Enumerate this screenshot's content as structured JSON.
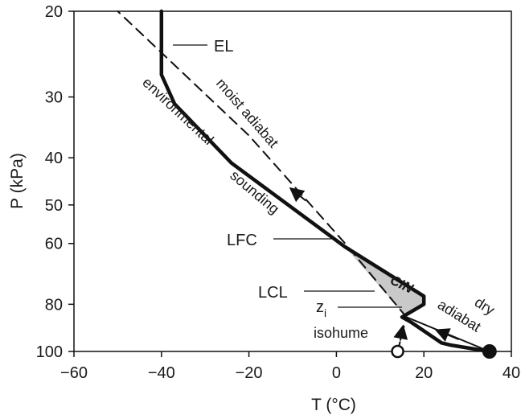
{
  "chart_data": {
    "type": "line",
    "title": "",
    "xlabel": "T (°C)",
    "ylabel": "P (kPa)",
    "xlim": [
      -60,
      40
    ],
    "ylim": [
      100,
      20
    ],
    "y_scale": "log",
    "x_ticks": [
      -60,
      -40,
      -20,
      0,
      20,
      40
    ],
    "x_tick_labels": [
      "−60",
      "−40",
      "−20",
      "0",
      "20",
      "40"
    ],
    "y_ticks": [
      20,
      30,
      40,
      50,
      60,
      80,
      100
    ],
    "y_tick_labels": [
      "20",
      "30",
      "40",
      "50",
      "60",
      "80",
      "100"
    ],
    "grid": false,
    "legend": "none",
    "series": [
      {
        "name": "environmental sounding",
        "style": "thick solid",
        "color": "#111111",
        "x": [
          35,
          26,
          24,
          17,
          15,
          20,
          20,
          2,
          -24,
          -37,
          -40,
          -40
        ],
        "y": [
          100,
          97,
          96,
          87,
          85,
          80,
          77,
          61,
          41,
          31,
          27,
          20
        ]
      },
      {
        "name": "dry adiabat",
        "style": "thin solid",
        "color": "#111111",
        "x": [
          35,
          16
        ],
        "y": [
          100,
          85
        ]
      },
      {
        "name": "moist adiabat",
        "style": "dashed",
        "color": "#111111",
        "x": [
          16,
          2,
          -20,
          -50
        ],
        "y": [
          85,
          60,
          36,
          20
        ]
      },
      {
        "name": "isohume",
        "style": "dashed",
        "color": "#111111",
        "x": [
          14,
          16
        ],
        "y": [
          100,
          85
        ]
      }
    ],
    "points": [
      {
        "x": 35,
        "y": 100,
        "style": "filled"
      },
      {
        "x": 14,
        "y": 100,
        "style": "open"
      }
    ],
    "cin_region": {
      "label": "CIN",
      "x": [
        2,
        20,
        20,
        15,
        16
      ],
      "y": [
        61,
        77,
        80,
        85,
        85
      ]
    },
    "annotations": [
      {
        "text": "EL",
        "kind": "label"
      },
      {
        "text": "LFC",
        "kind": "label"
      },
      {
        "text": "LCL",
        "kind": "label"
      },
      {
        "text": "z",
        "sub": "i",
        "kind": "label"
      },
      {
        "text": "isohume",
        "kind": "label"
      },
      {
        "text": "moist adiabat",
        "kind": "curve-label"
      },
      {
        "text": "environmental",
        "kind": "curve-label"
      },
      {
        "text": "sounding",
        "kind": "curve-label"
      },
      {
        "text": "dry",
        "kind": "curve-label"
      },
      {
        "text": "adiabat",
        "kind": "curve-label"
      }
    ]
  }
}
